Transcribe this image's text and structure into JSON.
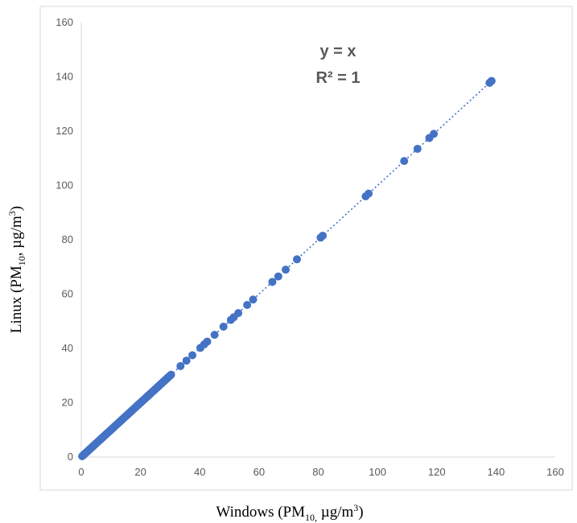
{
  "chart_data": {
    "type": "scatter",
    "xlabel": {
      "prefix": "Windows (PM",
      "subscript": "10,",
      "middle": " µg/m",
      "superscript": "3",
      "suffix": ")"
    },
    "ylabel": {
      "prefix": "Linux (PM",
      "subscript": "10",
      "middle": ", µg/m",
      "superscript": "3",
      "suffix": ")"
    },
    "xlim": [
      0,
      160
    ],
    "ylim": [
      0,
      160
    ],
    "xticks": [
      "0",
      "20",
      "40",
      "60",
      "80",
      "100",
      "120",
      "140",
      "160"
    ],
    "yticks": [
      "0",
      "20",
      "40",
      "60",
      "80",
      "100",
      "120",
      "140",
      "160"
    ],
    "grid": false,
    "legend": "none",
    "trendline": {
      "style": "dotted",
      "equation": "y = x",
      "r2": "R² = 1",
      "x_range": [
        0,
        139
      ]
    },
    "colors": {
      "marker": "#4472C4",
      "trendline": "#4472C4",
      "axis": "#d9d9d9",
      "tick_text": "#595959",
      "equation_text": "#595959"
    },
    "series": [
      {
        "x": [
          0.3,
          0.6,
          0.9,
          1.2,
          1.5,
          1.8,
          2.1,
          2.4,
          2.7,
          3.0,
          3.3,
          3.6,
          3.9,
          4.2,
          4.5,
          4.8,
          5.1,
          5.4,
          5.7,
          6.0,
          6.3,
          6.6,
          6.9,
          7.2,
          7.5,
          7.8,
          8.1,
          8.4,
          8.7,
          9.0,
          9.3,
          9.6,
          9.9,
          10.2,
          10.5,
          10.8,
          11.1,
          11.4,
          11.7,
          12.0,
          12.3,
          12.6,
          12.9,
          13.2,
          13.5,
          13.8,
          14.1,
          14.4,
          14.7,
          15.0,
          15.3,
          15.6,
          15.9,
          16.2,
          16.5,
          16.8,
          17.1,
          17.4,
          17.7,
          18.0,
          18.3,
          18.6,
          18.9,
          19.2,
          19.5,
          19.8,
          20.1,
          20.4,
          20.7,
          21.0,
          21.3,
          21.6,
          21.9,
          22.2,
          22.5,
          22.8,
          23.1,
          23.4,
          23.7,
          24.0,
          24.3,
          24.6,
          24.9,
          25.2,
          25.5,
          25.8,
          26.1,
          26.4,
          26.7,
          27.0,
          27.3,
          27.6,
          27.9,
          28.2,
          28.5,
          28.8,
          29.1,
          29.4,
          29.7,
          30.0,
          30.3,
          33.5,
          35.5,
          37.5,
          40.2,
          41.5,
          42.5,
          45.0,
          48.0,
          50.5,
          51.5,
          53.0,
          56.0,
          58.0,
          64.5,
          66.5,
          69.0,
          72.8,
          80.8,
          81.5,
          96.0,
          97.0,
          109.0,
          113.5,
          117.5,
          119.0,
          137.8,
          138.5
        ],
        "y": [
          0.3,
          0.6,
          0.9,
          1.2,
          1.5,
          1.8,
          2.1,
          2.4,
          2.7,
          3.0,
          3.3,
          3.6,
          3.9,
          4.2,
          4.5,
          4.8,
          5.1,
          5.4,
          5.7,
          6.0,
          6.3,
          6.6,
          6.9,
          7.2,
          7.5,
          7.8,
          8.1,
          8.4,
          8.7,
          9.0,
          9.3,
          9.6,
          9.9,
          10.2,
          10.5,
          10.8,
          11.1,
          11.4,
          11.7,
          12.0,
          12.3,
          12.6,
          12.9,
          13.2,
          13.5,
          13.8,
          14.1,
          14.4,
          14.7,
          15.0,
          15.3,
          15.6,
          15.9,
          16.2,
          16.5,
          16.8,
          17.1,
          17.4,
          17.7,
          18.0,
          18.3,
          18.6,
          18.9,
          19.2,
          19.5,
          19.8,
          20.1,
          20.4,
          20.7,
          21.0,
          21.3,
          21.6,
          21.9,
          22.2,
          22.5,
          22.8,
          23.1,
          23.4,
          23.7,
          24.0,
          24.3,
          24.6,
          24.9,
          25.2,
          25.5,
          25.8,
          26.1,
          26.4,
          26.7,
          27.0,
          27.3,
          27.6,
          27.9,
          28.2,
          28.5,
          28.8,
          29.1,
          29.4,
          29.7,
          30.0,
          30.3,
          33.5,
          35.5,
          37.5,
          40.2,
          41.5,
          42.5,
          45.0,
          48.0,
          50.5,
          51.5,
          53.0,
          56.0,
          58.0,
          64.5,
          66.5,
          69.0,
          72.8,
          80.8,
          81.5,
          96.0,
          97.0,
          109.0,
          113.5,
          117.5,
          119.0,
          137.8,
          138.5
        ]
      }
    ]
  }
}
